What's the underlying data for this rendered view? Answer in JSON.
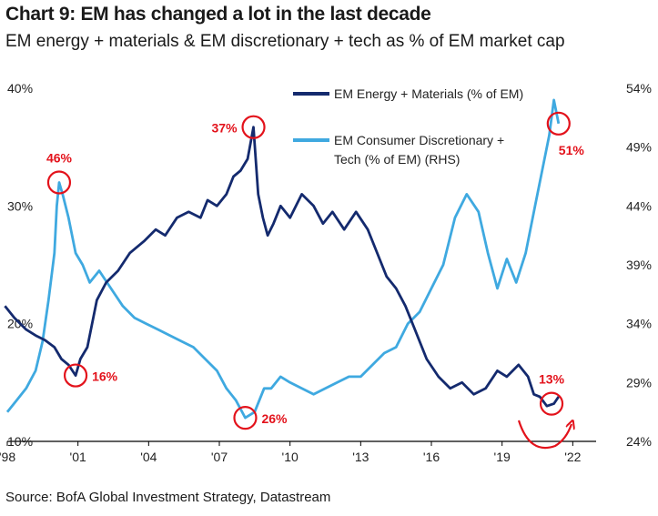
{
  "header": {
    "title": "Chart 9: EM has changed a lot in the last decade",
    "subtitle": "EM energy + materials & EM discretionary + tech as % of EM market cap"
  },
  "footer": {
    "source": "Source:  BofA Global Investment Strategy, Datastream"
  },
  "colors": {
    "dark_series": "#142a6e",
    "light_series": "#3fa9e0",
    "annotation": "#e3121b",
    "axis": "#000000"
  },
  "chart_data": {
    "type": "line",
    "title": "Chart 9: EM has changed a lot in the last decade",
    "xlabel": "",
    "ylabel_left": "",
    "ylabel_right": "",
    "xlim": [
      1998.0,
      2023.3
    ],
    "ylim_left": [
      10,
      40
    ],
    "ylim_right": [
      24,
      54
    ],
    "x_ticks": [
      {
        "value": 1998,
        "label": "'98"
      },
      {
        "value": 2001,
        "label": "'01"
      },
      {
        "value": 2004,
        "label": "'04"
      },
      {
        "value": 2007,
        "label": "'07"
      },
      {
        "value": 2010,
        "label": "'10"
      },
      {
        "value": 2013,
        "label": "'13"
      },
      {
        "value": 2016,
        "label": "'16"
      },
      {
        "value": 2019,
        "label": "'19"
      },
      {
        "value": 2022,
        "label": "'22"
      }
    ],
    "y_ticks_left": [
      {
        "value": 10,
        "label": "10%"
      },
      {
        "value": 20,
        "label": "20%"
      },
      {
        "value": 30,
        "label": "30%"
      },
      {
        "value": 40,
        "label": "40%"
      }
    ],
    "y_ticks_right": [
      {
        "value": 24,
        "label": "24%"
      },
      {
        "value": 29,
        "label": "29%"
      },
      {
        "value": 34,
        "label": "34%"
      },
      {
        "value": 39,
        "label": "39%"
      },
      {
        "value": 44,
        "label": "44%"
      },
      {
        "value": 49,
        "label": "49%"
      },
      {
        "value": 54,
        "label": "54%"
      }
    ],
    "series": [
      {
        "name": "EM Energy + Materials (% of EM)",
        "axis": "left",
        "color": "#142a6e",
        "x": [
          1997.9,
          1998.3,
          1998.8,
          1999.2,
          1999.6,
          2000.0,
          2000.3,
          2000.6,
          2000.9,
          2001.1,
          2001.4,
          2001.8,
          2002.2,
          2002.7,
          2003.2,
          2003.8,
          2004.3,
          2004.7,
          2005.2,
          2005.7,
          2006.2,
          2006.5,
          2006.9,
          2007.3,
          2007.6,
          2007.9,
          2008.2,
          2008.45,
          2008.65,
          2008.85,
          2009.05,
          2009.3,
          2009.6,
          2010.0,
          2010.5,
          2011.0,
          2011.4,
          2011.8,
          2012.3,
          2012.8,
          2013.3,
          2013.7,
          2014.1,
          2014.5,
          2014.9,
          2015.3,
          2015.8,
          2016.3,
          2016.8,
          2017.3,
          2017.8,
          2018.3,
          2018.8,
          2019.2,
          2019.7,
          2020.1,
          2020.35,
          2020.6,
          2020.9,
          2021.2,
          2021.4
        ],
        "y": [
          21.5,
          20.5,
          19.5,
          19,
          18.6,
          18,
          17,
          16.5,
          15.6,
          17,
          18,
          22,
          23.5,
          24.5,
          26,
          27,
          28,
          27.5,
          29,
          29.5,
          29,
          30.5,
          30,
          31,
          32.5,
          33,
          34,
          36.7,
          31,
          29,
          27.5,
          28.5,
          30,
          29,
          31,
          30,
          28.5,
          29.5,
          28,
          29.5,
          28,
          26,
          24,
          23,
          21.5,
          19.5,
          17,
          15.5,
          14.5,
          15,
          14,
          14.5,
          16,
          15.5,
          16.5,
          15.5,
          14,
          13.8,
          13,
          13.2,
          13.8
        ]
      },
      {
        "name": "EM Consumer Discretionary + Tech (% of EM) (RHS)",
        "axis": "right",
        "color": "#3fa9e0",
        "x": [
          1998.0,
          1998.4,
          1998.8,
          1999.2,
          1999.5,
          1999.75,
          2000.0,
          2000.1,
          2000.2,
          2000.35,
          2000.6,
          2000.9,
          2001.2,
          2001.5,
          2001.9,
          2002.4,
          2002.9,
          2003.4,
          2003.9,
          2004.4,
          2004.9,
          2005.4,
          2005.9,
          2006.4,
          2006.9,
          2007.3,
          2007.7,
          2008.1,
          2008.5,
          2008.9,
          2009.2,
          2009.6,
          2010.0,
          2010.5,
          2011.0,
          2011.5,
          2012.0,
          2012.5,
          2013.0,
          2013.5,
          2014.0,
          2014.5,
          2015.0,
          2015.5,
          2016.0,
          2016.5,
          2017.0,
          2017.5,
          2018.0,
          2018.4,
          2018.8,
          2019.2,
          2019.6,
          2020.0,
          2020.4,
          2020.7,
          2021.0,
          2021.2,
          2021.4
        ],
        "y": [
          26.5,
          27.5,
          28.5,
          30,
          32.5,
          36,
          40,
          44,
          46,
          45,
          43,
          40,
          39,
          37.5,
          38.5,
          37,
          35.5,
          34.5,
          34,
          33.5,
          33,
          32.5,
          32,
          31,
          30,
          28.5,
          27.5,
          26,
          26.5,
          28.5,
          28.5,
          29.5,
          29,
          28.5,
          28,
          28.5,
          29,
          29.5,
          29.5,
          30.5,
          31.5,
          32,
          34,
          35,
          37,
          39,
          43,
          45,
          43.5,
          40,
          37,
          39.5,
          37.5,
          40,
          44,
          47,
          50,
          53,
          51
        ]
      }
    ],
    "legend": {
      "placement": "top-center",
      "entries": [
        {
          "label": "EM Energy + Materials (% of EM)",
          "color": "#142a6e"
        },
        {
          "label_line1": "EM Consumer Discretionary +",
          "label_line2": "Tech (% of EM) (RHS)",
          "color": "#3fa9e0"
        }
      ]
    },
    "annotations": [
      {
        "label": "46%",
        "x": 2000.2,
        "y": 46,
        "axis": "right",
        "label_side": "above"
      },
      {
        "label": "16%",
        "x": 2000.9,
        "y": 15.6,
        "axis": "left",
        "label_side": "right"
      },
      {
        "label": "37%",
        "x": 2008.45,
        "y": 36.7,
        "axis": "left",
        "label_side": "left"
      },
      {
        "label": "26%",
        "x": 2008.1,
        "y": 26,
        "axis": "right",
        "label_side": "right"
      },
      {
        "label": "51%",
        "x": 2021.4,
        "y": 51,
        "axis": "right",
        "label_side": "below"
      },
      {
        "label": "13%",
        "x": 2021.1,
        "y": 13.2,
        "axis": "left",
        "label_side": "above"
      }
    ]
  }
}
